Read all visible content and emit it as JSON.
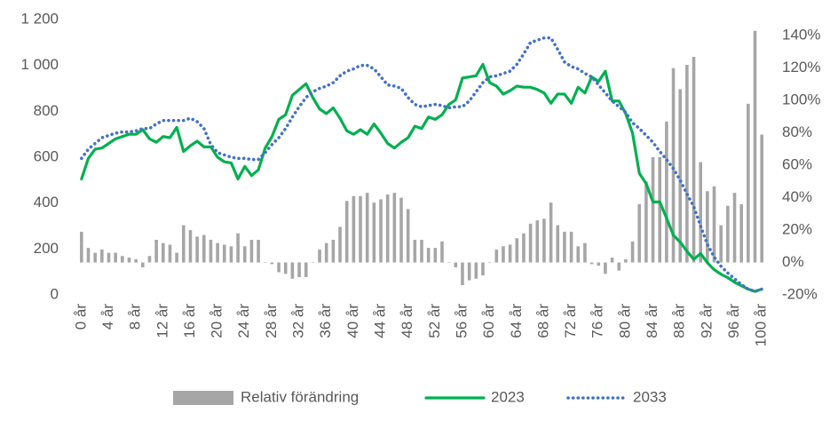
{
  "chart_data": {
    "type": "combo",
    "categories": [
      "0 år",
      null,
      null,
      null,
      "4 år",
      null,
      null,
      null,
      "8 år",
      null,
      null,
      null,
      "12 år",
      null,
      null,
      null,
      "16 år",
      null,
      null,
      null,
      "20 år",
      null,
      null,
      null,
      "24 år",
      null,
      null,
      null,
      "28 år",
      null,
      null,
      null,
      "32 år",
      null,
      null,
      null,
      "36 år",
      null,
      null,
      null,
      "40 år",
      null,
      null,
      null,
      "44 år",
      null,
      null,
      null,
      "48 år",
      null,
      null,
      null,
      "52 år",
      null,
      null,
      null,
      "56 år",
      null,
      null,
      null,
      "60 år",
      null,
      null,
      null,
      "64 år",
      null,
      null,
      null,
      "68 år",
      null,
      null,
      null,
      "72 år",
      null,
      null,
      null,
      "76 år",
      null,
      null,
      null,
      "80 år",
      null,
      null,
      null,
      "84 år",
      null,
      null,
      null,
      "88 år",
      null,
      null,
      null,
      "92 år",
      null,
      null,
      null,
      "96 år",
      null,
      null,
      null,
      "100 år"
    ],
    "ylim": [
      0,
      1200
    ],
    "yticks": [
      0,
      200,
      400,
      600,
      800,
      {
        "value": 1000,
        "label": "1 000"
      },
      {
        "value": 1200,
        "label": "1 200"
      }
    ],
    "y2lim": [
      -20,
      150
    ],
    "y2ticks": [
      {
        "value": -20,
        "label": "-20%"
      },
      {
        "value": 0,
        "label": "0%"
      },
      {
        "value": 20,
        "label": "20%"
      },
      {
        "value": 40,
        "label": "40%"
      },
      {
        "value": 60,
        "label": "60%"
      },
      {
        "value": 80,
        "label": "80%"
      },
      {
        "value": 100,
        "label": "100%"
      },
      {
        "value": 120,
        "label": "120%"
      },
      {
        "value": 140,
        "label": "140%"
      }
    ],
    "legend": "bottom",
    "series": [
      {
        "name": "Relativ förändring",
        "type": "bar",
        "axis": "y2",
        "color": "#a6a6a6",
        "values": [
          19,
          9,
          6,
          8,
          6,
          6,
          4,
          3,
          2,
          -3,
          4,
          14,
          12,
          11,
          6,
          23,
          20,
          16,
          17,
          14,
          12,
          11,
          10,
          18,
          10,
          14,
          14,
          0,
          -1,
          -6,
          -7,
          -10,
          -9,
          -9,
          0,
          8,
          12,
          14,
          22,
          38,
          41,
          41,
          43,
          37,
          39,
          42,
          43,
          40,
          33,
          14,
          14,
          9,
          9,
          13,
          0,
          -3,
          -14,
          -11,
          -10,
          -8,
          0,
          8,
          10,
          11,
          15,
          18,
          24,
          26,
          27,
          37,
          23,
          19,
          19,
          10,
          12,
          -1,
          -2,
          -7,
          3,
          -5,
          2,
          13,
          36,
          50,
          65,
          65,
          87,
          120,
          107,
          122,
          127,
          62,
          44,
          47,
          23,
          35,
          43,
          36,
          98,
          143,
          79
        ]
      },
      {
        "name": "2023",
        "type": "line",
        "axis": "y",
        "color": "#00b050",
        "dash": "solid",
        "values": [
          505,
          595,
          635,
          640,
          660,
          680,
          690,
          700,
          700,
          720,
          680,
          665,
          690,
          685,
          730,
          625,
          650,
          670,
          645,
          645,
          600,
          580,
          575,
          505,
          560,
          520,
          545,
          640,
          690,
          765,
          785,
          870,
          895,
          920,
          860,
          810,
          790,
          815,
          770,
          715,
          700,
          720,
          700,
          745,
          705,
          660,
          640,
          665,
          685,
          735,
          725,
          775,
          765,
          785,
          830,
          850,
          945,
          950,
          955,
          1005,
          925,
          910,
          875,
          890,
          910,
          905,
          905,
          895,
          880,
          835,
          875,
          875,
          835,
          905,
          880,
          950,
          930,
          975,
          845,
          845,
          790,
          705,
          530,
          485,
          405,
          405,
          335,
          260,
          230,
          190,
          155,
          180,
          140,
          110,
          90,
          75,
          55,
          40,
          25,
          15,
          25
        ]
      },
      {
        "name": "2033",
        "type": "line",
        "axis": "y",
        "color": "#4472c4",
        "dash": "dotted",
        "values": [
          595,
          635,
          660,
          685,
          695,
          705,
          710,
          710,
          715,
          725,
          725,
          745,
          760,
          760,
          760,
          760,
          770,
          755,
          725,
          655,
          620,
          610,
          600,
          595,
          595,
          590,
          590,
          620,
          655,
          685,
          725,
          775,
          820,
          860,
          885,
          900,
          910,
          925,
          955,
          975,
          985,
          1000,
          1000,
          985,
          950,
          915,
          910,
          900,
          860,
          830,
          820,
          825,
          830,
          825,
          815,
          820,
          820,
          845,
          885,
          925,
          950,
          955,
          965,
          975,
          1005,
          1050,
          1100,
          1110,
          1120,
          1120,
          1070,
          1015,
          995,
          985,
          965,
          950,
          915,
          880,
          845,
          820,
          795,
          750,
          725,
          695,
          665,
          625,
          590,
          550,
          500,
          440,
          385,
          300,
          220,
          165,
          125,
          95,
          70,
          45,
          25,
          15,
          25
        ]
      }
    ]
  }
}
